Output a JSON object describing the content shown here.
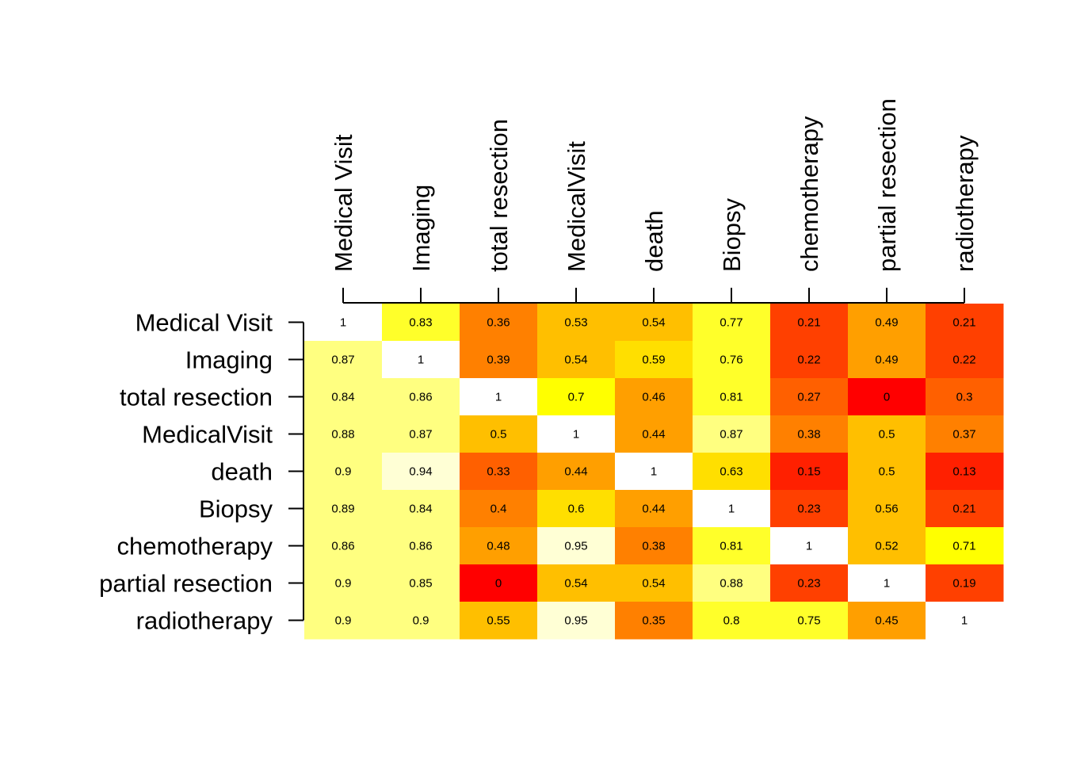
{
  "chart_data": {
    "type": "heatmap",
    "title": "",
    "xlabel": "",
    "ylabel": "",
    "columns": [
      "Medical Visit",
      "Imaging",
      "total resection",
      "MedicalVisit",
      "death",
      "Biopsy",
      "chemotherapy",
      "partial resection",
      "radiotherapy"
    ],
    "rows": [
      "Medical Visit",
      "Imaging",
      "total resection",
      "MedicalVisit",
      "death",
      "Biopsy",
      "chemotherapy",
      "partial resection",
      "radiotherapy"
    ],
    "values": [
      [
        1,
        0.83,
        0.36,
        0.53,
        0.54,
        0.77,
        0.21,
        0.49,
        0.21
      ],
      [
        0.87,
        1,
        0.39,
        0.54,
        0.59,
        0.76,
        0.22,
        0.49,
        0.22
      ],
      [
        0.84,
        0.86,
        1,
        0.7,
        0.46,
        0.81,
        0.27,
        0,
        0.3
      ],
      [
        0.88,
        0.87,
        0.5,
        1,
        0.44,
        0.87,
        0.38,
        0.5,
        0.37
      ],
      [
        0.9,
        0.94,
        0.33,
        0.44,
        1,
        0.63,
        0.15,
        0.5,
        0.13
      ],
      [
        0.89,
        0.84,
        0.4,
        0.6,
        0.44,
        1,
        0.23,
        0.56,
        0.21
      ],
      [
        0.86,
        0.86,
        0.48,
        0.95,
        0.38,
        0.81,
        1,
        0.52,
        0.71
      ],
      [
        0.9,
        0.85,
        0,
        0.54,
        0.54,
        0.88,
        0.23,
        1,
        0.19
      ],
      [
        0.9,
        0.9,
        0.55,
        0.95,
        0.35,
        0.8,
        0.75,
        0.45,
        1
      ]
    ],
    "colormap": "heat",
    "grid": false,
    "legend": false
  }
}
